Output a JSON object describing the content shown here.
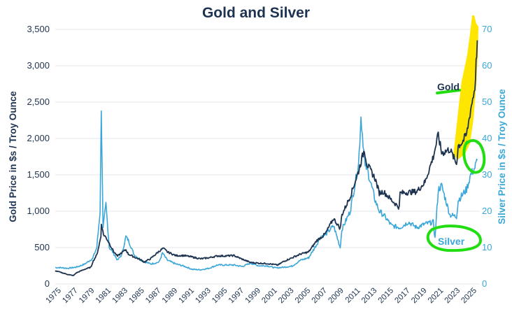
{
  "chart_data": {
    "type": "line",
    "title": "Gold and Silver",
    "xlabel": "",
    "ylabel_left": "Gold Price in $s / Troy Ounce",
    "ylabel_right": "Silver Price in $s / Troy Ounce",
    "xlim": [
      1974.5,
      2025.6
    ],
    "ylim_left": [
      0,
      3500
    ],
    "ylim_right": [
      0,
      70
    ],
    "y_ticks_left": [
      "0",
      "500",
      "1,000",
      "1,500",
      "2,000",
      "2,500",
      "3,000",
      "3,500"
    ],
    "y_ticks_right": [
      "0",
      "10",
      "20",
      "30",
      "40",
      "50",
      "60",
      "70"
    ],
    "x_ticks": [
      "1975",
      "1977",
      "1979",
      "1981",
      "1983",
      "1985",
      "1987",
      "1989",
      "1991",
      "1993",
      "1995",
      "1997",
      "1999",
      "2001",
      "2003",
      "2005",
      "2007",
      "2009",
      "2011",
      "2013",
      "2015",
      "2017",
      "2019",
      "2021",
      "2023",
      "2025"
    ],
    "grid": true,
    "colors": {
      "gold": "#1e3350",
      "silver": "#3aa7d8",
      "highlight_yellow": "#ffe600",
      "annotation_green": "#22dd11"
    },
    "series": [
      {
        "name": "Gold",
        "axis": "left",
        "x": [
          1974.5,
          1975,
          1976,
          1976.7,
          1977,
          1978,
          1978.8,
          1979,
          1979.5,
          1980,
          1980.05,
          1980.3,
          1980.6,
          1981,
          1981.5,
          1982,
          1982.5,
          1983,
          1983.3,
          1984,
          1985,
          1985.2,
          1986,
          1987,
          1987.5,
          1988,
          1989,
          1990,
          1991,
          1992,
          1993,
          1994,
          1995,
          1996,
          1997,
          1998,
          1999,
          2000,
          2001,
          2001.3,
          2002,
          2003,
          2004,
          2005,
          2006,
          2006.5,
          2007,
          2008,
          2008.8,
          2009,
          2010,
          2011,
          2011.7,
          2012,
          2013,
          2013.5,
          2014,
          2015,
          2015.9,
          2016,
          2017,
          2018,
          2019,
          2020,
          2020.6,
          2021,
          2022,
          2022.8,
          2023,
          2023.5,
          2024,
          2024.5,
          2025,
          2025.3
        ],
        "values": [
          180,
          165,
          130,
          115,
          150,
          200,
          230,
          300,
          400,
          650,
          830,
          680,
          640,
          560,
          450,
          380,
          430,
          470,
          410,
          370,
          320,
          300,
          350,
          450,
          490,
          440,
          390,
          390,
          370,
          345,
          360,
          385,
          385,
          390,
          340,
          295,
          285,
          280,
          265,
          260,
          310,
          360,
          410,
          440,
          600,
          640,
          690,
          900,
          760,
          950,
          1200,
          1550,
          1850,
          1650,
          1450,
          1250,
          1270,
          1150,
          1050,
          1250,
          1260,
          1270,
          1400,
          1750,
          2050,
          1800,
          1850,
          1650,
          1900,
          1950,
          2050,
          2400,
          2700,
          3350
        ]
      },
      {
        "name": "Silver",
        "axis": "right",
        "x": [
          1974.5,
          1975,
          1976,
          1977,
          1978,
          1979,
          1979.5,
          1979.9,
          1980.04,
          1980.25,
          1980.6,
          1981,
          1981.5,
          1982,
          1982.5,
          1983,
          1983.3,
          1984,
          1985,
          1986,
          1987,
          1987.4,
          1988,
          1989,
          1990,
          1991,
          1992,
          1993,
          1994,
          1995,
          1996,
          1997,
          1998,
          1999,
          2000,
          2001,
          2002,
          2003,
          2004,
          2005,
          2006,
          2006.4,
          2007,
          2008,
          2008.8,
          2009,
          2010,
          2011,
          2011.3,
          2011.8,
          2012,
          2013,
          2013.5,
          2014,
          2015,
          2016,
          2017,
          2018,
          2019,
          2020,
          2020.2,
          2020.6,
          2021,
          2022,
          2022.8,
          2023,
          2024,
          2024.5,
          2025,
          2025.3
        ],
        "values": [
          4.5,
          4.5,
          4.3,
          4.6,
          5.4,
          7,
          10,
          20,
          49,
          15,
          22,
          10,
          8.5,
          6.5,
          8,
          13,
          12,
          8,
          6.3,
          5.5,
          6,
          8.5,
          6.5,
          5.5,
          4.9,
          4,
          3.9,
          4.3,
          5.2,
          5.2,
          5.2,
          4.8,
          5.7,
          5,
          5,
          4.4,
          4.6,
          4.9,
          6.5,
          7.2,
          11,
          13,
          13.5,
          16,
          10,
          15,
          20,
          33,
          46,
          32,
          32,
          23,
          20,
          19,
          16,
          15.5,
          17,
          15.5,
          16.5,
          17,
          12.5,
          26,
          27,
          19,
          18.5,
          23,
          26,
          30,
          32,
          34
        ]
      }
    ],
    "annotations": {
      "gold_label": "Gold",
      "silver_label": "Silver"
    }
  }
}
